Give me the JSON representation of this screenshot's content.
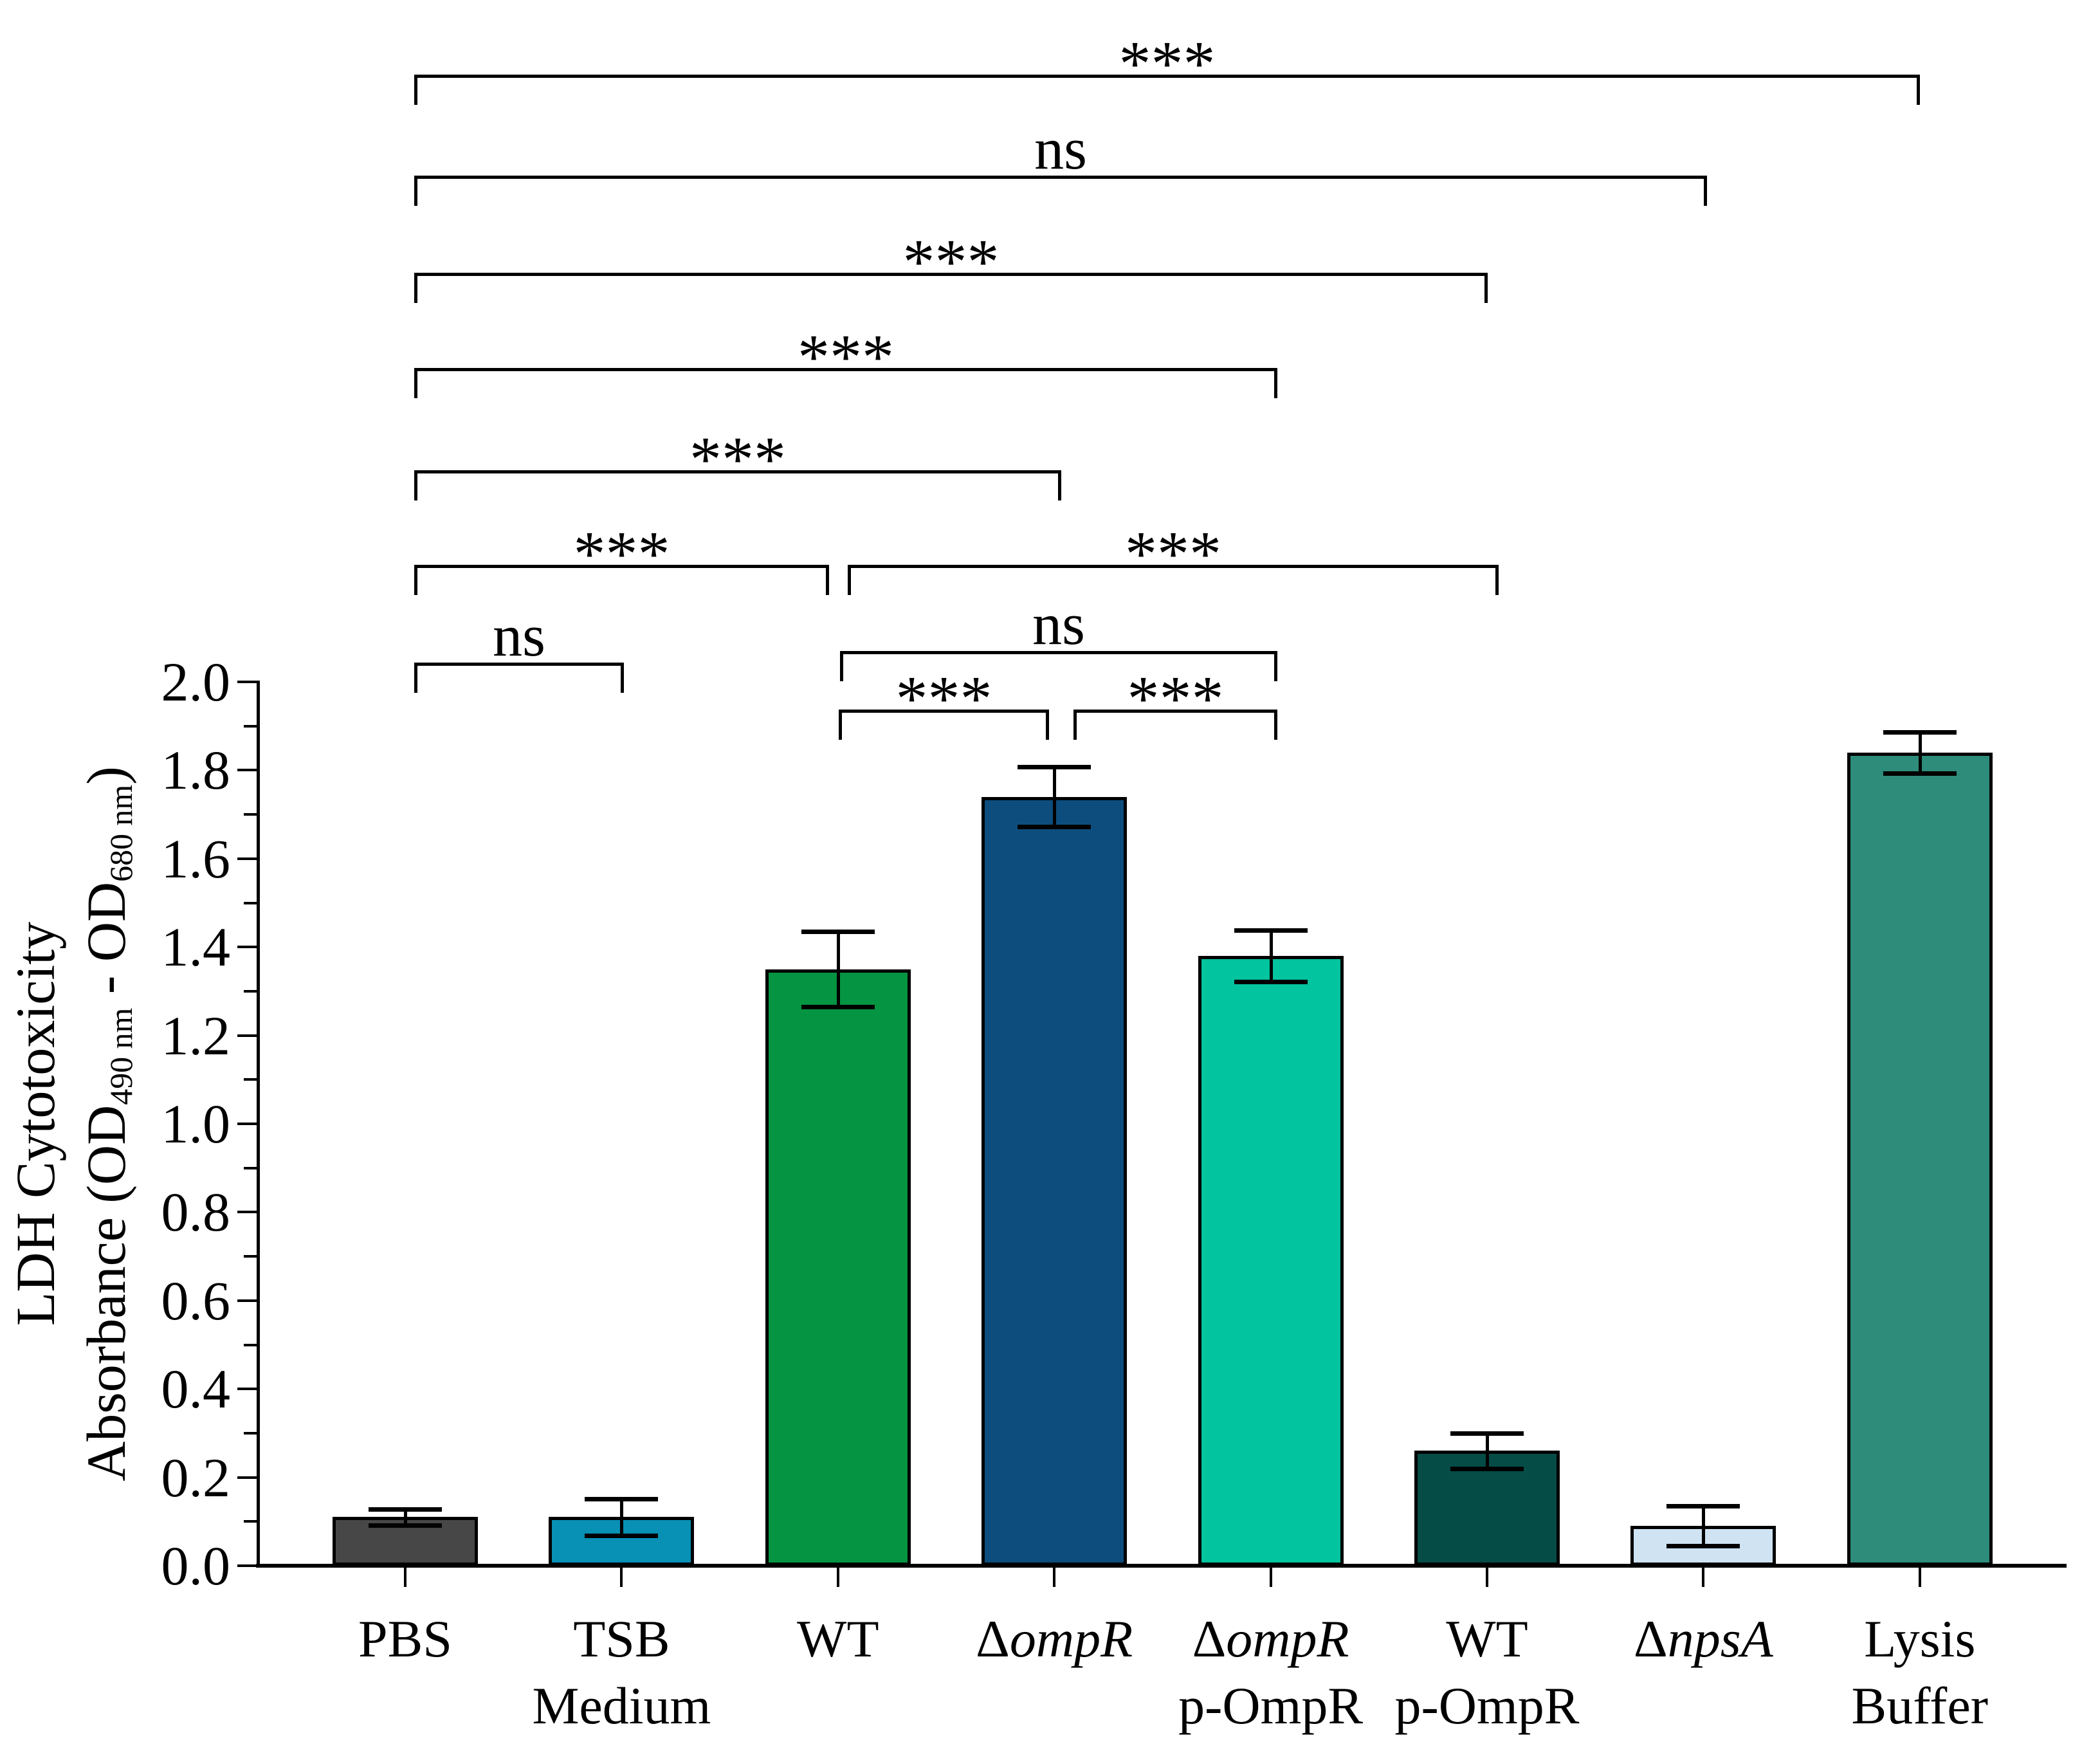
{
  "chart_data": {
    "type": "bar",
    "title": "",
    "ylabel_line1": "LDH Cytotoxicity",
    "ylabel_line2_plain": "Absorbance (OD490 nm - OD680 nm)",
    "ylabel_line2_parts": [
      {
        "t": "Absorbance (OD"
      },
      {
        "t": "490 nm",
        "sub": true
      },
      {
        "t": " - OD"
      },
      {
        "t": "680 nm",
        "sub": true
      },
      {
        "t": ")"
      }
    ],
    "ylim": [
      0.0,
      2.0
    ],
    "ytick_step": 0.2,
    "yminor_step": 0.1,
    "ytick_labels": [
      "0.0",
      "0.2",
      "0.4",
      "0.6",
      "0.8",
      "1.0",
      "1.2",
      "1.4",
      "1.6",
      "1.8",
      "2.0"
    ],
    "grid": false,
    "legend": "none",
    "categories": [
      "PBS",
      "TSB Medium",
      "WT",
      "ΔompR",
      "ΔompR p-OmpR",
      "WT p-OmpR",
      "ΔnpsA",
      "Lysis Buffer"
    ],
    "category_label_lines": [
      [
        [
          {
            "t": "PBS"
          }
        ]
      ],
      [
        [
          {
            "t": "TSB"
          }
        ],
        [
          {
            "t": "Medium"
          }
        ]
      ],
      [
        [
          {
            "t": "WT"
          }
        ]
      ],
      [
        [
          {
            "t": "Δ"
          },
          {
            "t": "ompR",
            "i": true
          }
        ]
      ],
      [
        [
          {
            "t": "Δ"
          },
          {
            "t": "ompR",
            "i": true
          }
        ],
        [
          {
            "t": "p-OmpR"
          }
        ]
      ],
      [
        [
          {
            "t": "WT"
          }
        ],
        [
          {
            "t": "p-OmpR"
          }
        ]
      ],
      [
        [
          {
            "t": "Δ"
          },
          {
            "t": "npsA",
            "i": true
          }
        ]
      ],
      [
        [
          {
            "t": "Lysis"
          }
        ],
        [
          {
            "t": "Buffer"
          }
        ]
      ]
    ],
    "values": [
      0.11,
      0.11,
      1.35,
      1.74,
      1.38,
      0.26,
      0.09,
      1.84
    ],
    "errors": [
      0.018,
      0.042,
      0.085,
      0.068,
      0.058,
      0.04,
      0.045,
      0.047
    ],
    "bar_colors": [
      "#474747",
      "#0890b5",
      "#059441",
      "#0d4d7d",
      "#02c49e",
      "#054c47",
      "#cfe3f2",
      "#2e8c7b"
    ],
    "bar_border_color": "#000000",
    "error_bar_color": "#000000",
    "significance_brackets": [
      {
        "pair": "PBS vs Lysis Buffer",
        "label": "***",
        "x1": 644,
        "x2": 2985,
        "y": 116
      },
      {
        "pair": "PBS vs ΔnpsA",
        "label": "ns",
        "x1": 644,
        "x2": 2654,
        "y": 273
      },
      {
        "pair": "PBS vs WT p-OmpR",
        "label": "***",
        "x1": 644,
        "x2": 2313,
        "y": 424
      },
      {
        "pair": "PBS vs ΔompR p-OmpR",
        "label": "***",
        "x1": 644,
        "x2": 1986,
        "y": 572
      },
      {
        "pair": "PBS vs ΔompR",
        "label": "***",
        "x1": 644,
        "x2": 1650,
        "y": 731
      },
      {
        "pair": "PBS vs WT",
        "label": "***",
        "x1": 644,
        "x2": 1289,
        "y": 878
      },
      {
        "pair": "WT vs WT p-OmpR",
        "label": "***",
        "x1": 1318,
        "x2": 2330,
        "y": 878
      },
      {
        "pair": "WT vs ΔompR p-OmpR",
        "label": "ns",
        "x1": 1306,
        "x2": 1986,
        "y": 1012
      },
      {
        "pair": "PBS vs TSB Medium",
        "label": "ns",
        "x1": 644,
        "x2": 970,
        "y": 1030
      },
      {
        "pair": "WT vs ΔompR",
        "label": "***",
        "x1": 1304,
        "x2": 1631,
        "y": 1103
      },
      {
        "pair": "ΔompR vs ΔompR p-OmpR",
        "label": "***",
        "x1": 1669,
        "x2": 1986,
        "y": 1103
      }
    ]
  }
}
